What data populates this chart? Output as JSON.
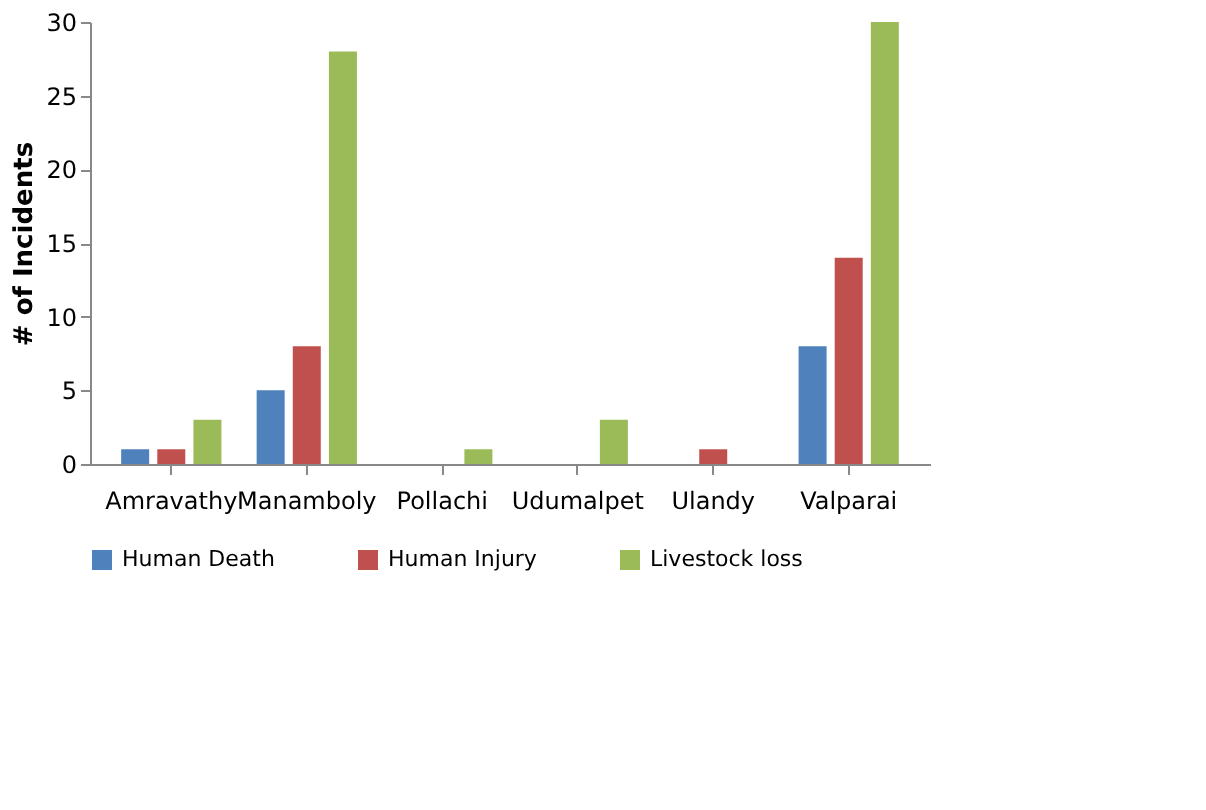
{
  "chart_data": {
    "type": "bar",
    "ylabel": "# of  Incidents",
    "categories": [
      "Amravathy",
      "Manamboly",
      "Pollachi",
      "Udumalpet",
      "Ulandy",
      "Valparai"
    ],
    "series": [
      {
        "name": "Human Death",
        "color": "#4f81bd",
        "values": [
          1,
          5,
          0,
          0,
          0,
          8
        ]
      },
      {
        "name": "Human Injury",
        "color": "#c0504d",
        "values": [
          1,
          8,
          0,
          0,
          1,
          14
        ]
      },
      {
        "name": "Livestock loss",
        "color": "#9bbb59",
        "values": [
          3,
          28,
          1,
          3,
          0,
          30
        ]
      }
    ],
    "ylim": [
      0,
      30
    ],
    "yticks": [
      0,
      5,
      10,
      15,
      20,
      25,
      30
    ],
    "grid": false,
    "legend": "bottom"
  }
}
